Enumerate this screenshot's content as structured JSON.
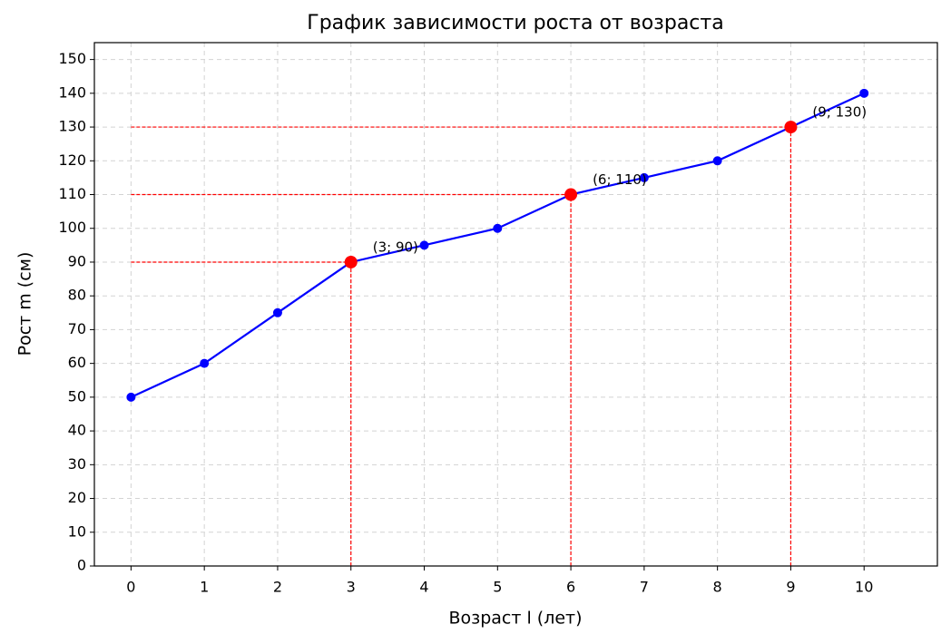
{
  "chart_data": {
    "type": "line",
    "title": "График зависимости роста от возраста",
    "xlabel": "Возраст l (лет)",
    "ylabel": "Рост m (см)",
    "x": [
      0,
      1,
      2,
      3,
      4,
      5,
      6,
      7,
      8,
      9,
      10
    ],
    "values": [
      50,
      60,
      75,
      90,
      95,
      100,
      110,
      115,
      120,
      130,
      140
    ],
    "color": "#0000ff",
    "highlights": [
      {
        "x": 3,
        "y": 90,
        "label": "(3; 90)"
      },
      {
        "x": 6,
        "y": 110,
        "label": "(6; 110)"
      },
      {
        "x": 9,
        "y": 130,
        "label": "(9; 130)"
      }
    ],
    "highlight_color": "#ff0000",
    "xlim": [
      -0.5,
      11
    ],
    "ylim": [
      0,
      155
    ],
    "xticks": [
      0,
      1,
      2,
      3,
      4,
      5,
      6,
      7,
      8,
      9,
      10
    ],
    "yticks": [
      0,
      10,
      20,
      30,
      40,
      50,
      60,
      70,
      80,
      90,
      100,
      110,
      120,
      130,
      140,
      150
    ],
    "grid": true
  }
}
